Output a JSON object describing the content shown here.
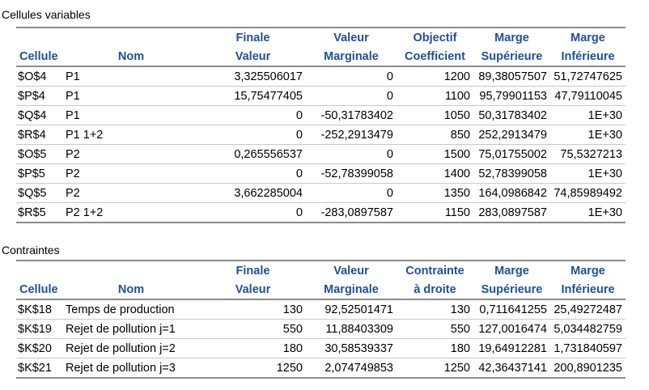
{
  "variables": {
    "title": "Cellules variables",
    "headers": {
      "top": [
        "",
        "",
        "Finale",
        "Valeur",
        "Objectif",
        "Marge",
        "Marge"
      ],
      "bottom": [
        "Cellule",
        "Nom",
        "Valeur",
        "Marginale",
        "Coefficient",
        "Supérieure",
        "Inférieure"
      ]
    },
    "rows": [
      [
        "$O$4",
        "P1",
        "3,325506017",
        "0",
        "1200",
        "89,38057507",
        "51,72747625"
      ],
      [
        "$P$4",
        "P1",
        "15,75477405",
        "0",
        "1100",
        "95,79901153",
        "47,79110045"
      ],
      [
        "$Q$4",
        "P1",
        "0",
        "-50,31783402",
        "1050",
        "50,31783402",
        "1E+30"
      ],
      [
        "$R$4",
        "P1 1+2",
        "0",
        "-252,2913479",
        "850",
        "252,2913479",
        "1E+30"
      ],
      [
        "$O$5",
        "P2",
        "0,265556537",
        "0",
        "1500",
        "75,01755002",
        "75,5327213"
      ],
      [
        "$P$5",
        "P2",
        "0",
        "-52,78399058",
        "1400",
        "52,78399058",
        "1E+30"
      ],
      [
        "$Q$5",
        "P2",
        "3,662285004",
        "0",
        "1350",
        "164,0986842",
        "74,85989492"
      ],
      [
        "$R$5",
        "P2 1+2",
        "0",
        "-283,0897587",
        "1150",
        "283,0897587",
        "1E+30"
      ]
    ]
  },
  "constraints": {
    "title": "Contraintes",
    "headers": {
      "top": [
        "",
        "",
        "Finale",
        "Valeur",
        "Contrainte",
        "Marge",
        "Marge"
      ],
      "bottom": [
        "Cellule",
        "Nom",
        "Valeur",
        "Marginale",
        "à droite",
        "Supérieure",
        "Inférieure"
      ]
    },
    "rows": [
      [
        "$K$18",
        "Temps de production",
        "130",
        "92,52501471",
        "130",
        "0,711641255",
        "25,49272487"
      ],
      [
        "$K$19",
        "Rejet de pollution j=1",
        "550",
        "11,88403309",
        "550",
        "127,0016474",
        "5,034482759"
      ],
      [
        "$K$20",
        "Rejet de pollution j=2",
        "180",
        "30,58539337",
        "180",
        "19,64912281",
        "1,731840597"
      ],
      [
        "$K$21",
        "Rejet de pollution j=3",
        "1250",
        "2,074749853",
        "1250",
        "42,36437141",
        "200,8901235"
      ]
    ]
  }
}
